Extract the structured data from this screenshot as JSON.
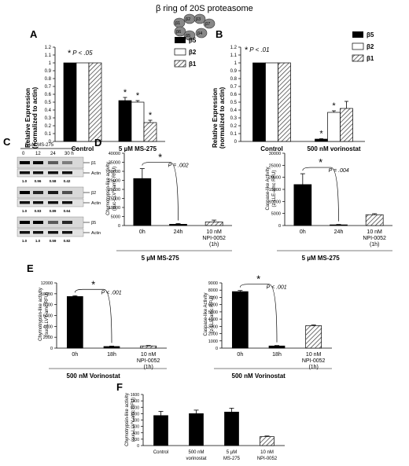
{
  "header": {
    "title": "β ring of 20S proteasome",
    "subunits": [
      "β1",
      "β2",
      "β3",
      "β7",
      "β6",
      "β5",
      "β4"
    ]
  },
  "colors": {
    "b5": "#000000",
    "b2": "#ffffff",
    "b1": "hatch",
    "dark": "#000000",
    "edge": "#000000"
  },
  "chart_data": [
    {
      "id": "A",
      "type": "bar",
      "letter": "A",
      "categories": [
        "Control",
        "5 µM MS-275"
      ],
      "series": [
        {
          "name": "β5",
          "values": [
            1.0,
            0.52
          ],
          "errors": [
            0,
            0.04
          ],
          "fill": "solid"
        },
        {
          "name": "β2",
          "values": [
            1.0,
            0.5
          ],
          "errors": [
            0,
            0.02
          ],
          "fill": "white"
        },
        {
          "name": "β1",
          "values": [
            1.0,
            0.24
          ],
          "errors": [
            0,
            0.03
          ],
          "fill": "hatch"
        }
      ],
      "ylabel": "Relative Expression (normalized to actin)",
      "ylabel_lines": [
        "Relative Expression",
        "(normalized to actin)"
      ],
      "ylim": [
        0,
        1.2
      ],
      "yticks": [
        "0",
        "0.1",
        "0.2",
        "0.3",
        "0.4",
        "0.5",
        "0.6",
        "0.7",
        "0.8",
        "0.9",
        "1",
        "1.1",
        "1.2"
      ],
      "pvalue": "P < .05",
      "stars": [
        "*",
        "*",
        "*"
      ]
    },
    {
      "id": "B",
      "type": "bar",
      "letter": "B",
      "categories": [
        "Control",
        "500 nM vorinostat"
      ],
      "series": [
        {
          "name": "β5",
          "values": [
            1.0,
            0.03
          ],
          "errors": [
            0,
            0.005
          ],
          "fill": "solid"
        },
        {
          "name": "β2",
          "values": [
            1.0,
            0.37
          ],
          "errors": [
            0,
            0.02
          ],
          "fill": "white"
        },
        {
          "name": "β1",
          "values": [
            1.0,
            0.42
          ],
          "errors": [
            0,
            0.09
          ],
          "fill": "hatch"
        }
      ],
      "ylabel": "Relative Expression (normalized to actin)",
      "ylabel_lines": [
        "Relative Expression",
        "(normalized to actin)"
      ],
      "ylim": [
        0,
        1.2
      ],
      "yticks": [
        "0",
        "0.1",
        "0.2",
        "0.3",
        "0.4",
        "0.5",
        "0.6",
        "0.7",
        "0.8",
        "0.9",
        "1",
        "1.1",
        "1.2"
      ],
      "pvalue": "P < .01",
      "stars": [
        "*",
        "*"
      ]
    },
    {
      "id": "D1",
      "type": "bar",
      "letter": "D",
      "categories": [
        "0h",
        "24h",
        "10 nM NPI-0052 (1h)"
      ],
      "cat_lines": [
        [
          "0h"
        ],
        [
          "24h"
        ],
        [
          "10 nM",
          "NPI-0052",
          "(1h)"
        ]
      ],
      "values": [
        26000,
        700,
        2000
      ],
      "errors": [
        5500,
        400,
        1000
      ],
      "fills": [
        "solid",
        "solid",
        "hatch"
      ],
      "ylabel_lines": [
        "Chymotrypsin-like activity",
        "(suc-LLVY-amc RFU)"
      ],
      "ylim": [
        0,
        40000
      ],
      "yticks": [
        "0",
        "5000",
        "10000",
        "15000",
        "20000",
        "25000",
        "30000",
        "35000",
        "40000"
      ],
      "pvalue": "P = .002",
      "xgroup": "5 µM MS-275"
    },
    {
      "id": "D2",
      "type": "bar",
      "letter": "",
      "categories": [
        "0h",
        "24h",
        "10 nM NPI-0052 (1h)"
      ],
      "cat_lines": [
        [
          "0h"
        ],
        [
          "24h"
        ],
        [
          "10 nM",
          "NPI-0052",
          "(1h)"
        ]
      ],
      "values": [
        17000,
        300,
        4500
      ],
      "errors": [
        4500,
        150,
        400
      ],
      "fills": [
        "solid",
        "solid",
        "hatch"
      ],
      "ylabel_lines": [
        "Caspase-like Activity",
        "(z-LLE-amc RFU)"
      ],
      "ylim": [
        0,
        30000
      ],
      "yticks": [
        "0",
        "5000",
        "10000",
        "15000",
        "20000",
        "25000",
        "30000"
      ],
      "pvalue": "P = .004",
      "xgroup": "5 µM MS-275"
    },
    {
      "id": "E1",
      "type": "bar",
      "letter": "E",
      "categories": [
        "0h",
        "18h",
        "10 nM NPI-0052 (1h)"
      ],
      "cat_lines": [
        [
          "0h"
        ],
        [
          "18h"
        ],
        [
          "10 nM",
          "NPI-0052",
          "(1h)"
        ]
      ],
      "values": [
        9500,
        300,
        400
      ],
      "errors": [
        150,
        80,
        80
      ],
      "fills": [
        "solid",
        "solid",
        "hatch"
      ],
      "ylabel_lines": [
        "Chymotrypsin-like activity",
        "(suc-LLVY-amc RFU)"
      ],
      "ylim": [
        0,
        12000
      ],
      "yticks": [
        "0",
        "2000",
        "4000",
        "6000",
        "8000",
        "10000",
        "12000"
      ],
      "pvalue": "P < .001",
      "xgroup": "500 nM Vorinostat"
    },
    {
      "id": "E2",
      "type": "bar",
      "letter": "",
      "categories": [
        "0h",
        "18h",
        "10 nM NPI-0052 (1h)"
      ],
      "cat_lines": [
        [
          "0h"
        ],
        [
          "18h"
        ],
        [
          "10 nM",
          "NPI-0052",
          "(1h)"
        ]
      ],
      "values": [
        7800,
        300,
        3100
      ],
      "errors": [
        150,
        60,
        100
      ],
      "fills": [
        "solid",
        "solid",
        "hatch"
      ],
      "ylabel_lines": [
        "Caspase-like Activity",
        "(z-LLE-amc RFU)"
      ],
      "ylim": [
        0,
        9000
      ],
      "yticks": [
        "0",
        "1000",
        "2000",
        "3000",
        "4000",
        "5000",
        "6000",
        "7000",
        "8000",
        "9000"
      ],
      "pvalue": "P < .001",
      "xgroup": "500 nM Vorinostat"
    },
    {
      "id": "F",
      "type": "bar",
      "letter": "F",
      "categories": [
        "Control",
        "500 nM vorinostat",
        "5 µM MS-275",
        "10 nM NPI-0052"
      ],
      "cat_lines": [
        [
          "Control"
        ],
        [
          "500 nM",
          "vorinostat"
        ],
        [
          "5 µM",
          "MS-275"
        ],
        [
          "10 nM",
          "NPI-0052"
        ]
      ],
      "values": [
        940,
        1000,
        1050,
        280
      ],
      "errors": [
        130,
        110,
        120,
        20
      ],
      "fills": [
        "solid",
        "solid",
        "solid",
        "hatch"
      ],
      "ylabel_lines": [
        "Chymotrypsin-like activity",
        "(suc-LLVY-amc RFU)"
      ],
      "ylim": [
        0,
        1600
      ],
      "yticks": [
        "0",
        "200",
        "400",
        "600",
        "800",
        "1000",
        "1200",
        "1400",
        "1600"
      ]
    }
  ],
  "blot": {
    "letter": "C",
    "treatment": "5 µM MS-275",
    "timepoints": [
      "0",
      "12",
      "24",
      "30 h"
    ],
    "rows": [
      {
        "label": "β1",
        "values": [
          "1.0",
          "0.96",
          "0.58",
          "0.42"
        ]
      },
      {
        "label": "β2",
        "values": [
          "1.0",
          "0.83",
          "0.89",
          "0.64"
        ]
      },
      {
        "label": "β5",
        "values": [
          "1.0",
          "1.0",
          "0.59",
          "0.82"
        ]
      }
    ],
    "actin": "Actin"
  }
}
